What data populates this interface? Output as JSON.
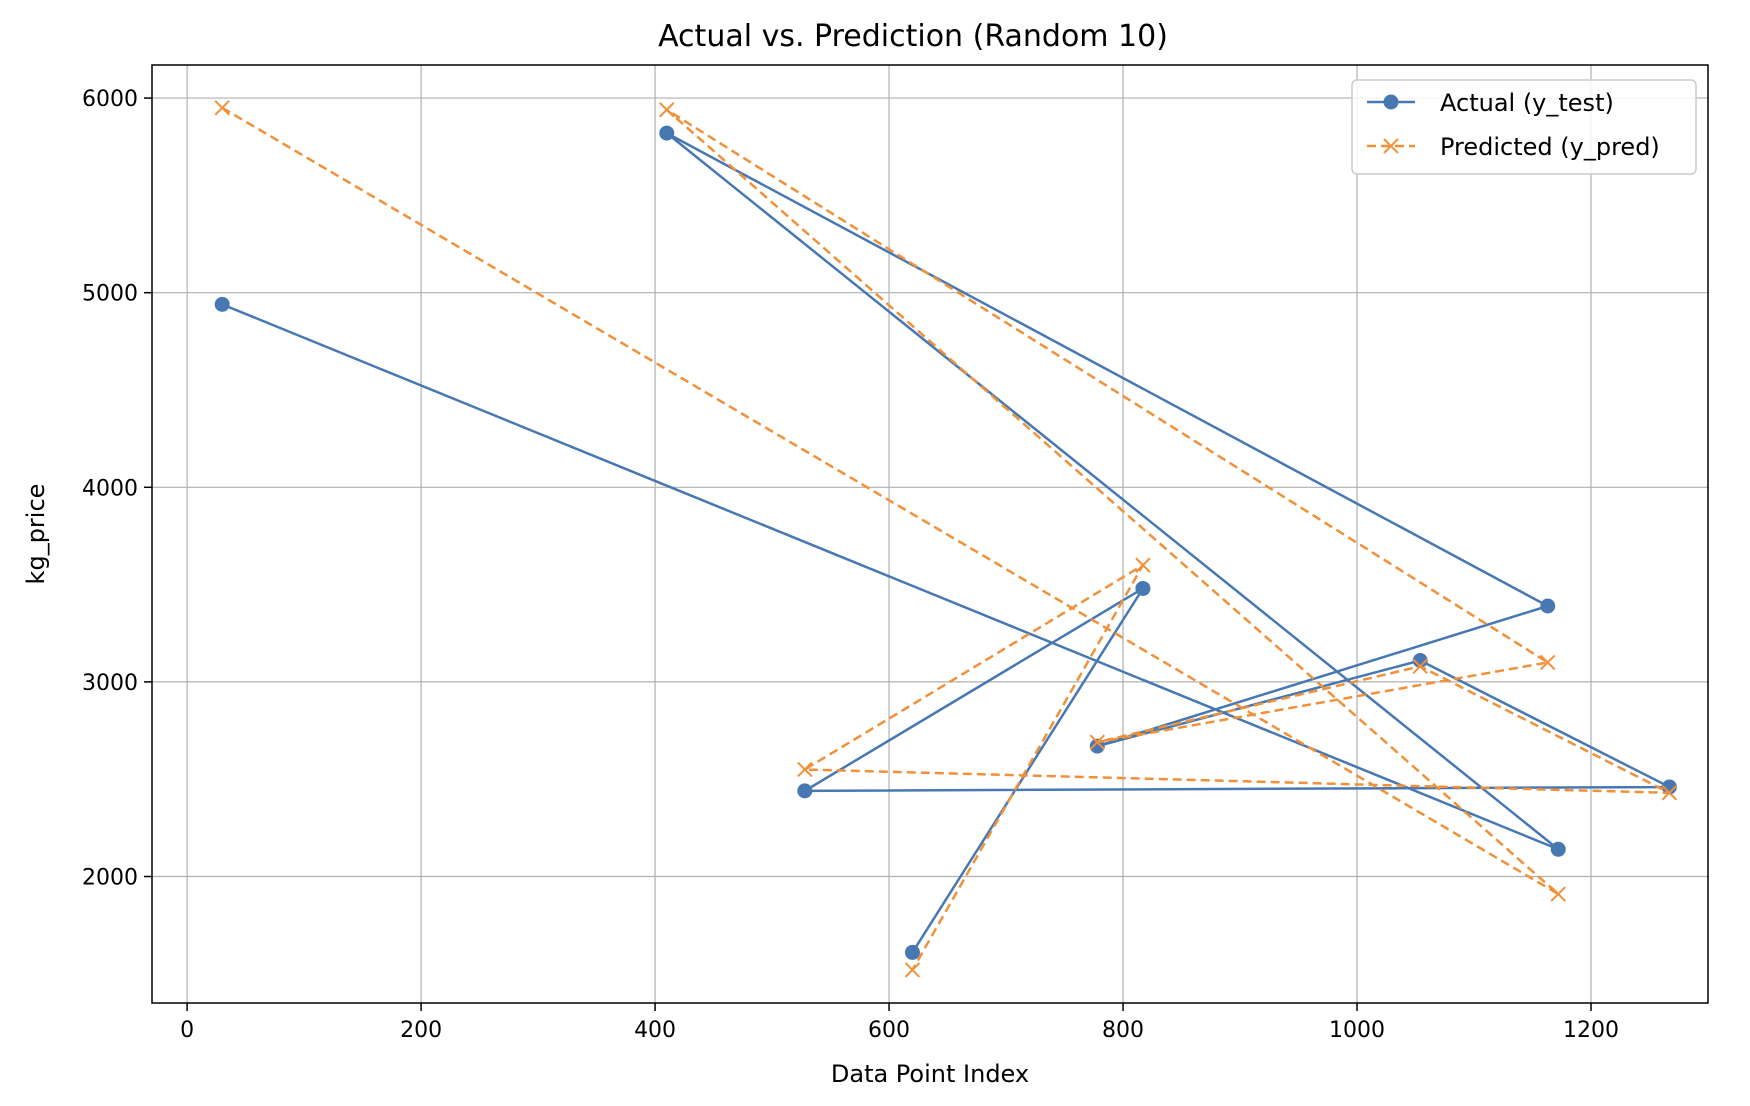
{
  "chart_data": {
    "type": "line",
    "title": "Actual vs. Prediction (Random 10)",
    "xlabel": "Data Point Index",
    "ylabel": "kg_price",
    "xlim": [
      -30,
      1300
    ],
    "ylim": [
      1350,
      6170
    ],
    "x_ticks": [
      0,
      200,
      400,
      600,
      800,
      1000,
      1200
    ],
    "y_ticks": [
      2000,
      3000,
      4000,
      5000,
      6000
    ],
    "grid": true,
    "legend_position": "top-right",
    "x": [
      30,
      1172,
      410,
      1163,
      778,
      1054,
      1267,
      528,
      817,
      620
    ],
    "series": [
      {
        "name": "Actual (y_test)",
        "color": "#4778b2",
        "style": "solid",
        "marker": "circle",
        "values": [
          4940,
          2140,
          5820,
          3390,
          2670,
          3110,
          2460,
          2440,
          3480,
          1610
        ]
      },
      {
        "name": "Predicted (y_pred)",
        "color": "#f0913a",
        "style": "dashed",
        "marker": "x",
        "values": [
          5950,
          1910,
          5940,
          3100,
          2690,
          3080,
          2430,
          2550,
          3600,
          1520
        ]
      }
    ]
  }
}
